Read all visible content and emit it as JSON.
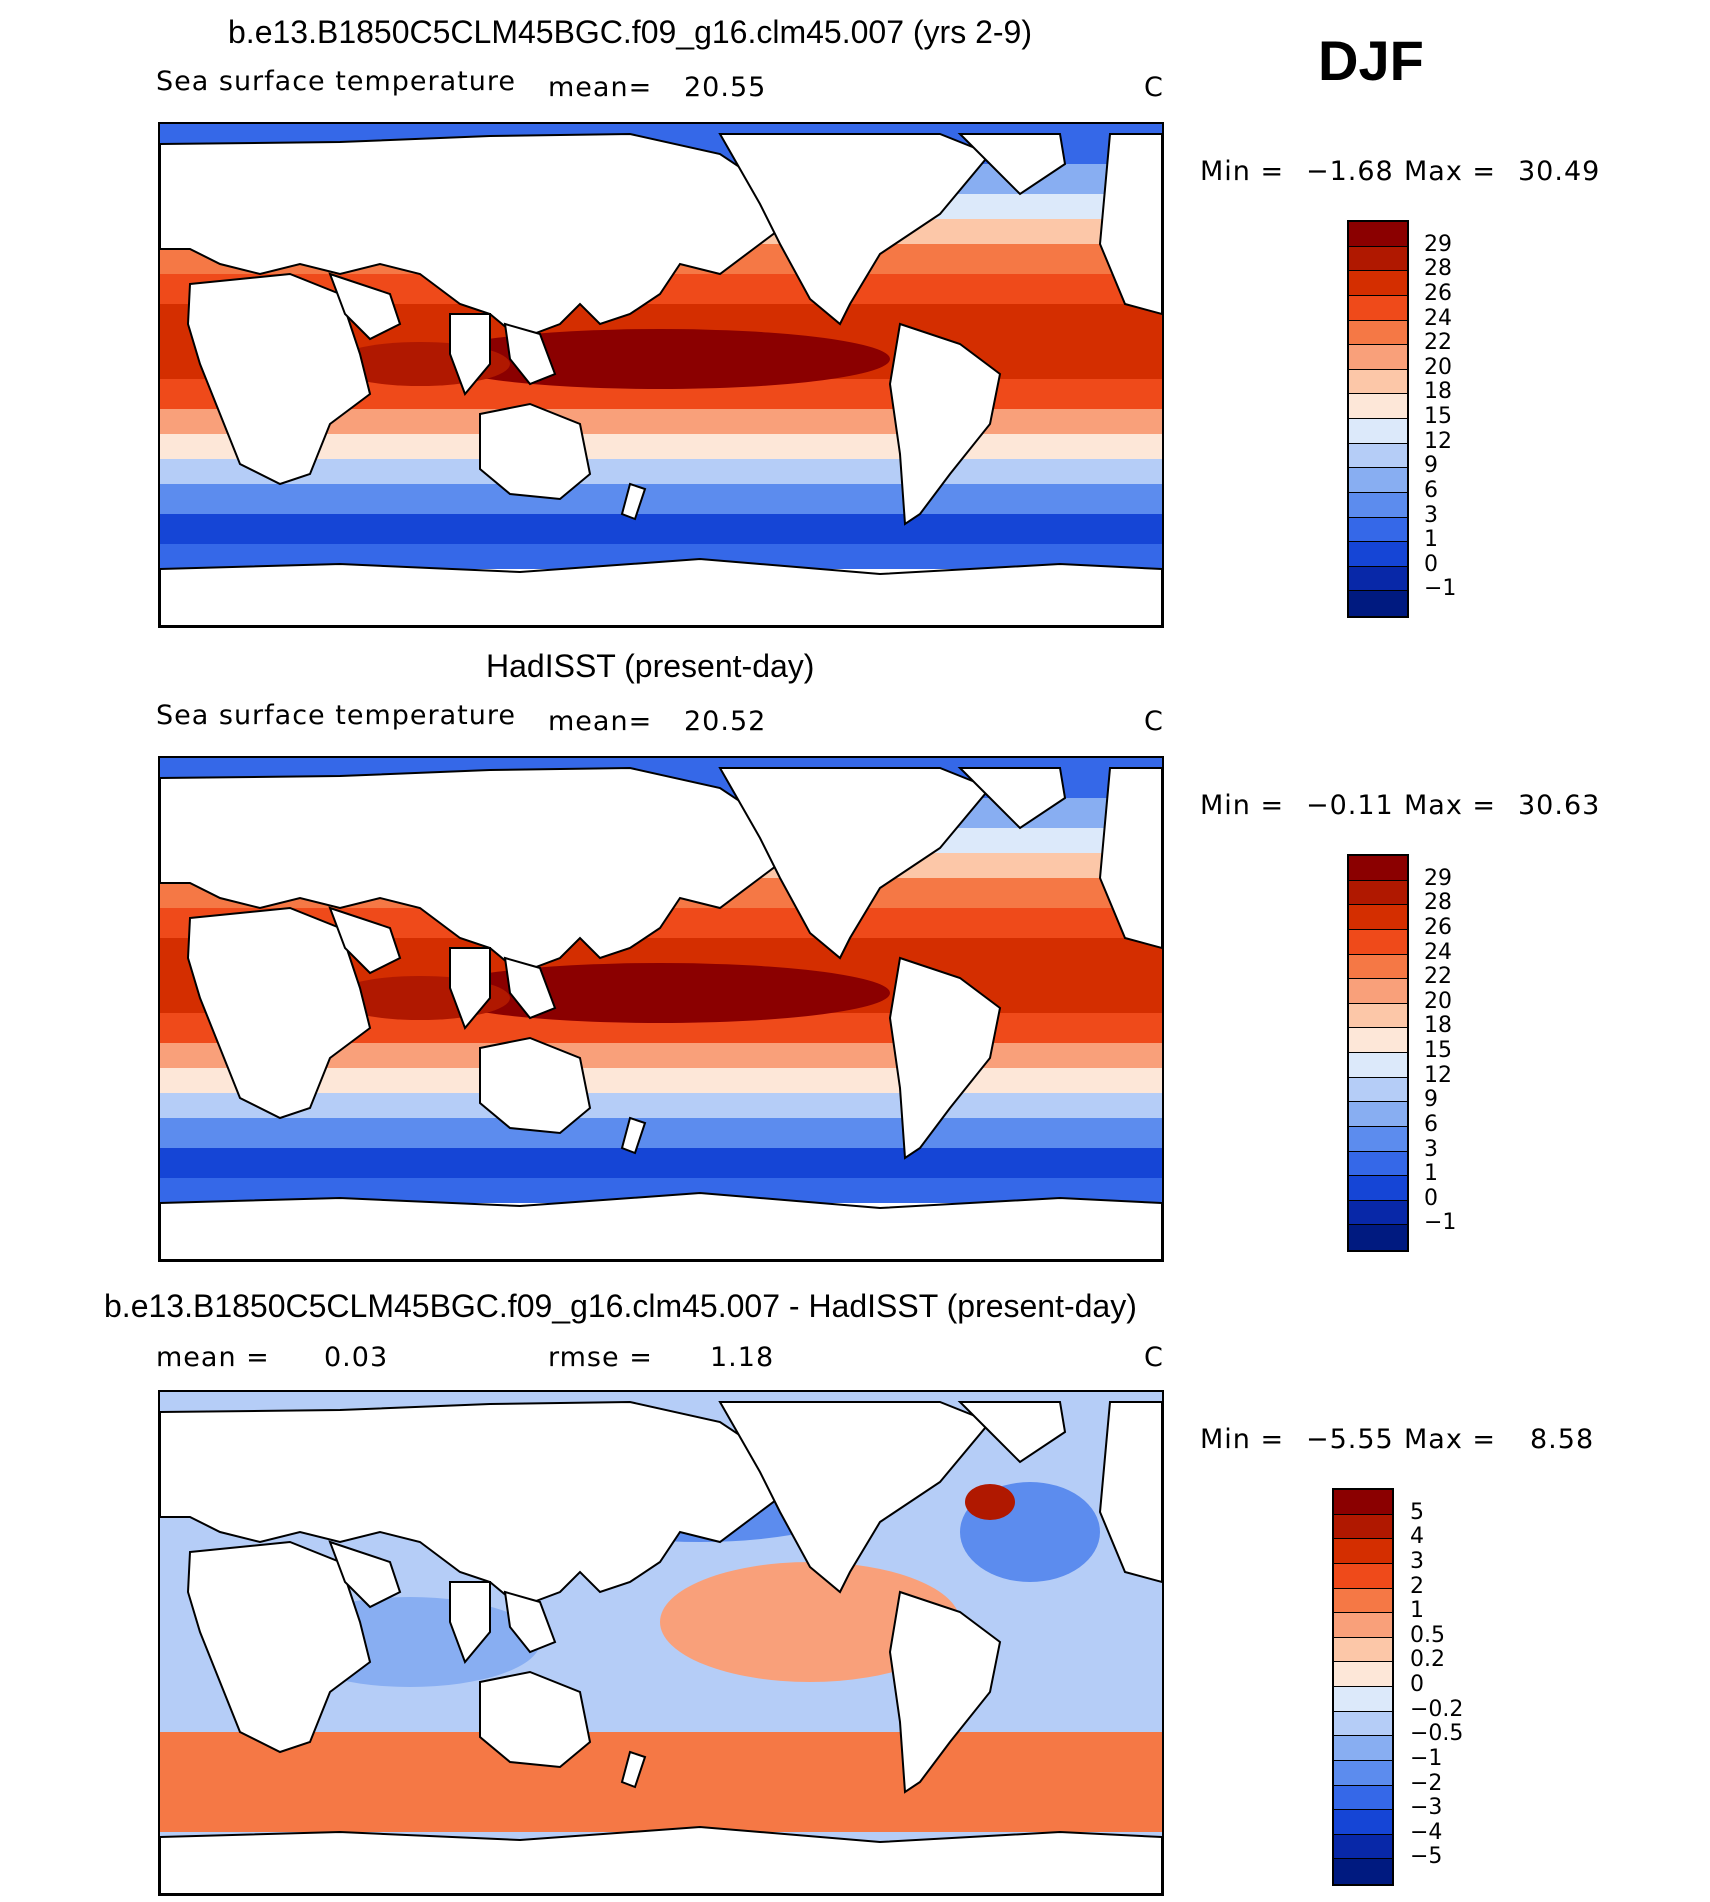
{
  "season": "DJF",
  "panels": [
    {
      "title": "b.e13.B1850C5CLM45BGC.f09_g16.clm45.007 (yrs 2-9)",
      "variable": "Sea surface temperature",
      "stat1_label": "mean=",
      "stat1_value": "20.55",
      "stat2_label": "",
      "stat2_value": "",
      "units": "C",
      "min_label": "Min =",
      "min_value": "−1.68",
      "max_label": "Max =",
      "max_value": "30.49",
      "colorbar_labels": [
        "29",
        "28",
        "26",
        "24",
        "22",
        "20",
        "18",
        "15",
        "12",
        "9",
        "6",
        "3",
        "1",
        "0",
        "−1"
      ],
      "colorbar_colors": [
        "#8b0000",
        "#b01800",
        "#d42e00",
        "#ef4a1a",
        "#f57845",
        "#f9a07a",
        "#fcc7a8",
        "#fde7d8",
        "#dce9fa",
        "#b5cdf7",
        "#88aef2",
        "#5c8cee",
        "#3568e8",
        "#1545d6",
        "#0828a8",
        "#001a80"
      ]
    },
    {
      "title": "HadISST (present-day)",
      "variable": "Sea surface temperature",
      "stat1_label": "mean=",
      "stat1_value": "20.52",
      "stat2_label": "",
      "stat2_value": "",
      "units": "C",
      "min_label": "Min =",
      "min_value": "−0.11",
      "max_label": "Max =",
      "max_value": "30.63",
      "colorbar_labels": [
        "29",
        "28",
        "26",
        "24",
        "22",
        "20",
        "18",
        "15",
        "12",
        "9",
        "6",
        "3",
        "1",
        "0",
        "−1"
      ],
      "colorbar_colors": [
        "#8b0000",
        "#b01800",
        "#d42e00",
        "#ef4a1a",
        "#f57845",
        "#f9a07a",
        "#fcc7a8",
        "#fde7d8",
        "#dce9fa",
        "#b5cdf7",
        "#88aef2",
        "#5c8cee",
        "#3568e8",
        "#1545d6",
        "#0828a8",
        "#001a80"
      ]
    },
    {
      "title": "b.e13.B1850C5CLM45BGC.f09_g16.clm45.007 - HadISST (present-day)",
      "variable": "",
      "stat1_label": "mean =",
      "stat1_value": "0.03",
      "stat2_label": "rmse =",
      "stat2_value": "1.18",
      "units": "C",
      "min_label": "Min =",
      "min_value": "−5.55",
      "max_label": "Max =",
      "max_value": "8.58",
      "colorbar_labels": [
        "5",
        "4",
        "3",
        "2",
        "1",
        "0.5",
        "0.2",
        "0",
        "−0.2",
        "−0.5",
        "−1",
        "−2",
        "−3",
        "−4",
        "−5"
      ],
      "colorbar_colors": [
        "#8b0000",
        "#b01800",
        "#d42e00",
        "#ef4a1a",
        "#f57845",
        "#f9a07a",
        "#fcc7a8",
        "#fde7d8",
        "#dce9fa",
        "#b5cdf7",
        "#88aef2",
        "#5c8cee",
        "#3568e8",
        "#1545d6",
        "#0828a8",
        "#001a80"
      ]
    }
  ]
}
